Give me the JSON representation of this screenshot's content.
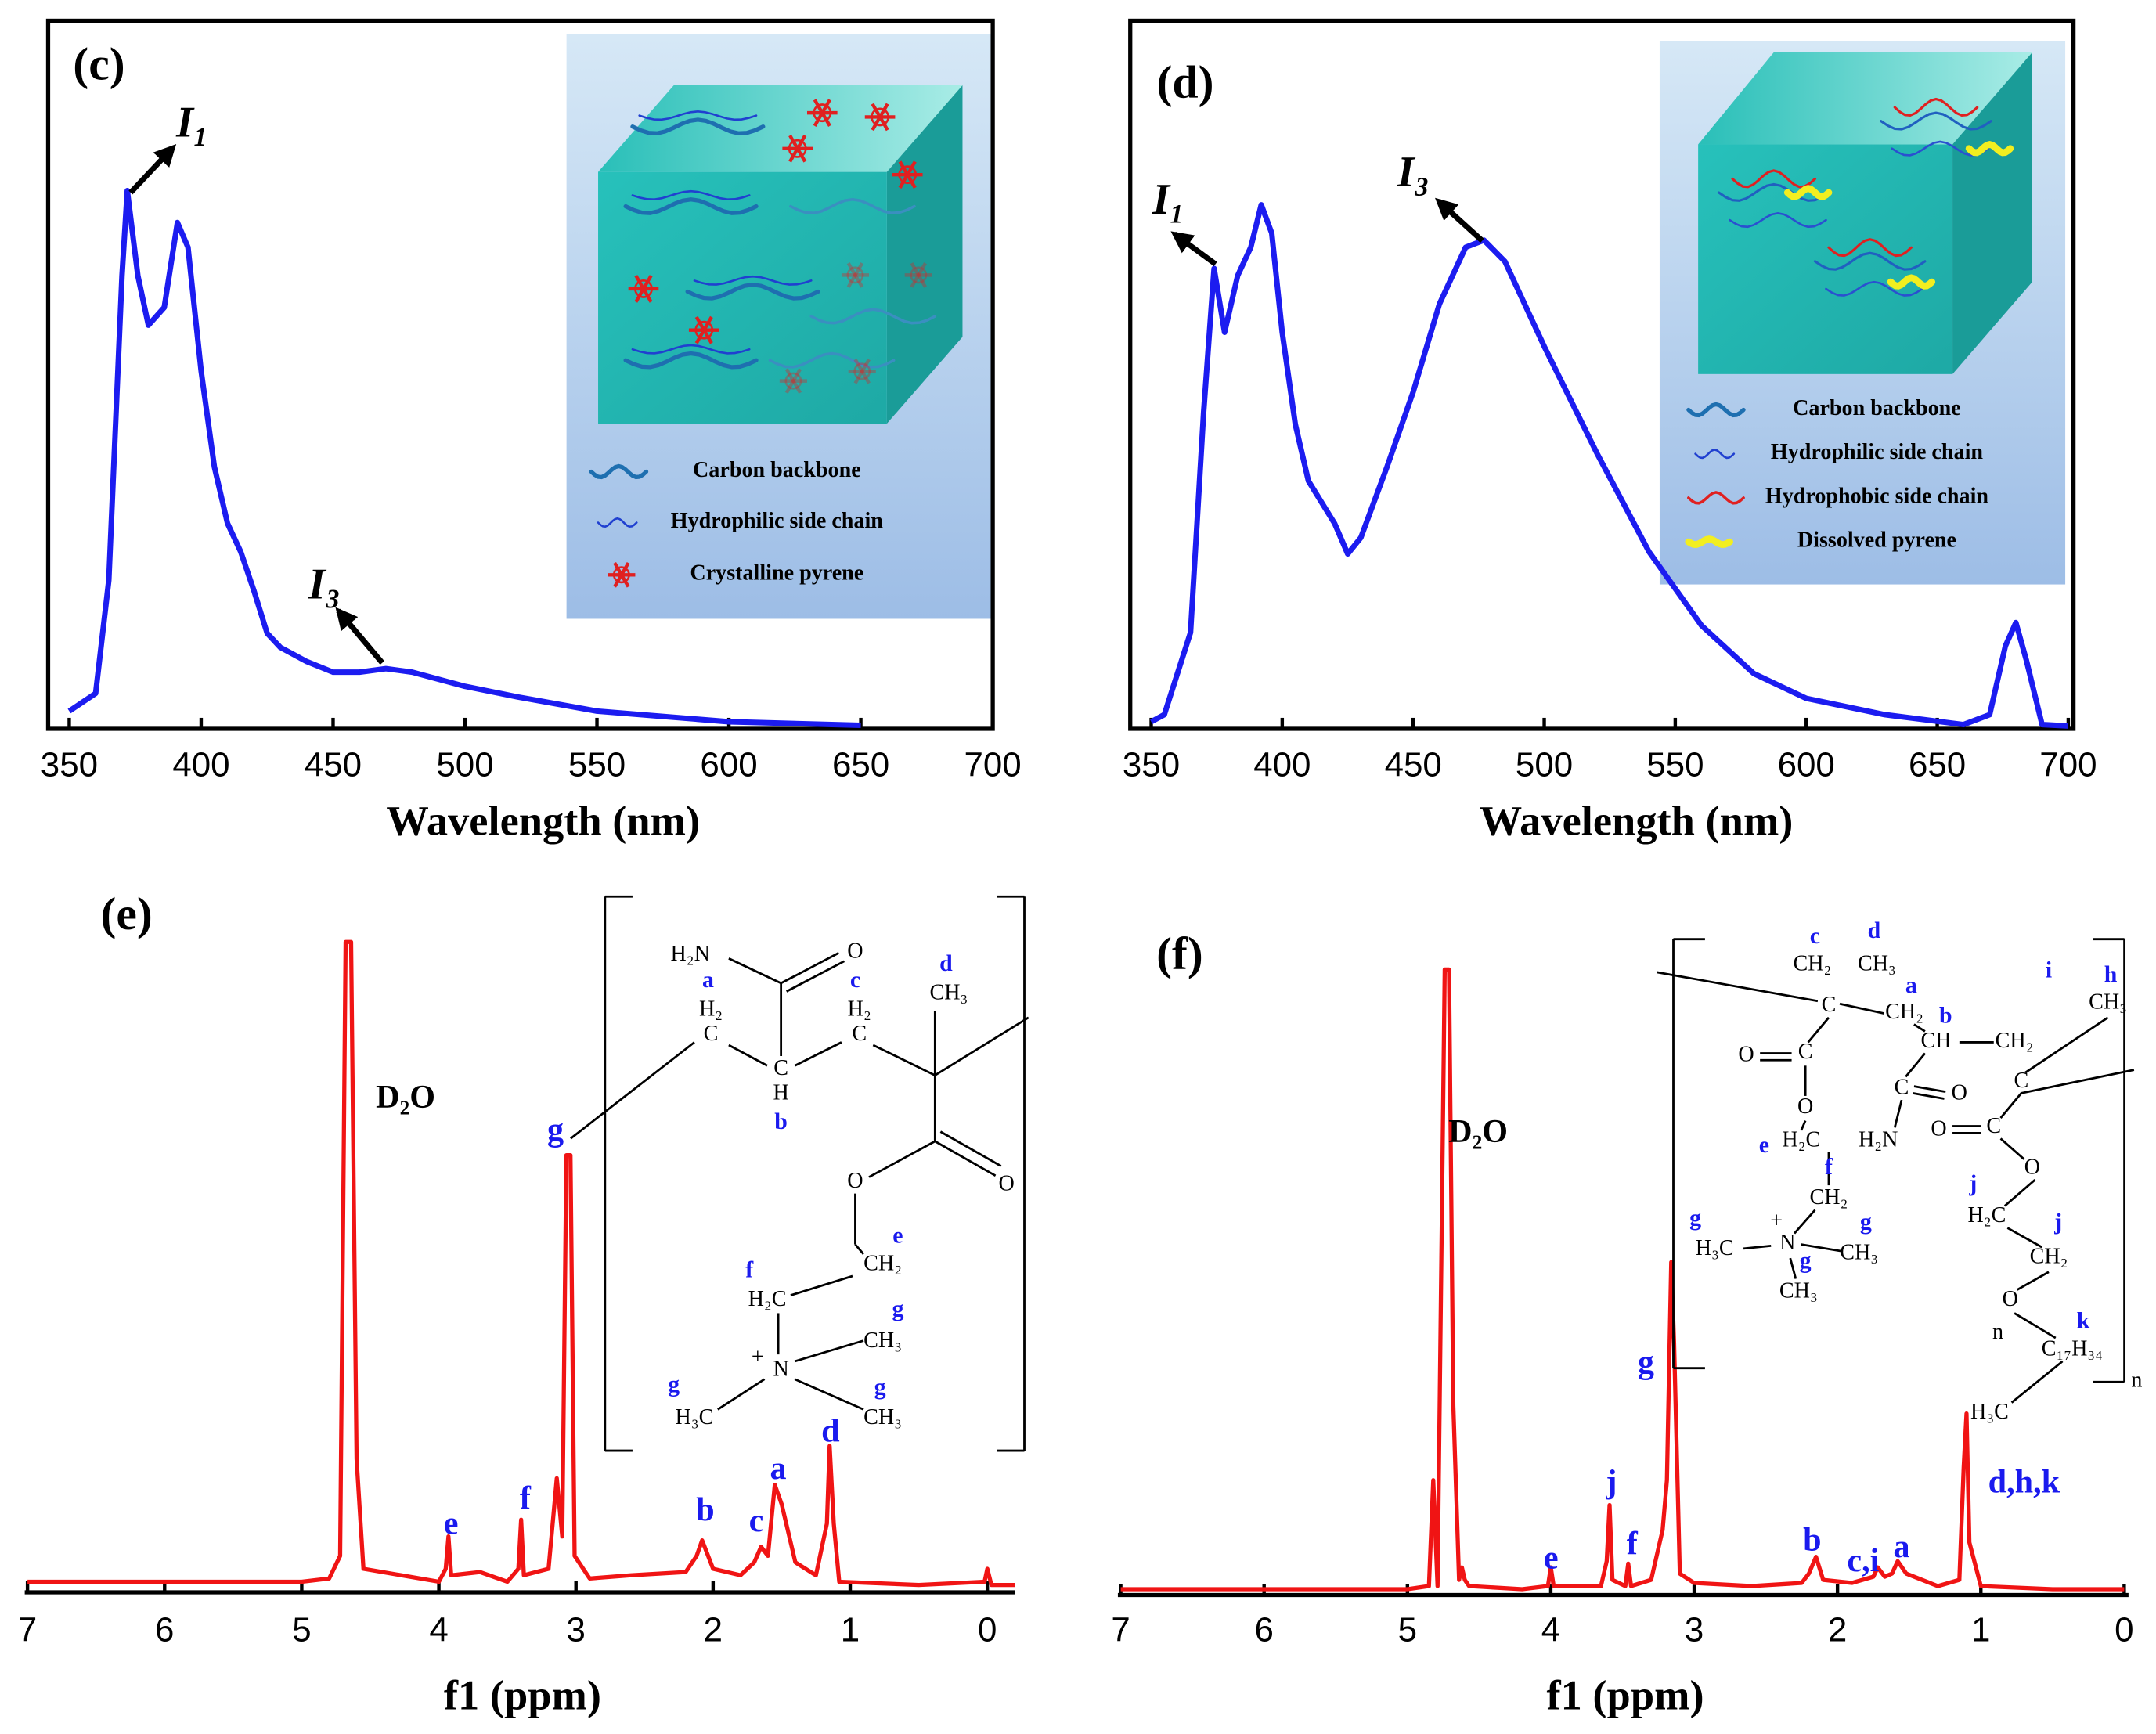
{
  "chart_data": [
    {
      "type": "line",
      "panel_label": "(c)",
      "x_label": "Wavelength (nm)",
      "x": [
        350,
        360,
        365,
        370,
        372,
        376,
        380,
        386,
        391,
        395,
        400,
        405,
        410,
        415,
        420,
        425,
        430,
        440,
        450,
        460,
        470,
        480,
        500,
        520,
        550,
        600,
        650
      ],
      "series": [
        {
          "color": "#1c1cf0",
          "values": [
            2.5,
            5,
            21,
            64,
            76,
            64,
            57,
            59.5,
            71.5,
            68,
            50.5,
            37,
            29,
            25,
            19.5,
            13.5,
            11.5,
            9.5,
            8,
            8,
            8.5,
            8,
            6,
            4.5,
            2.5,
            1,
            0.5
          ]
        }
      ],
      "xlim": [
        342,
        700
      ],
      "ylim": [
        0,
        100
      ],
      "xticks": [
        350,
        400,
        450,
        500,
        550,
        600,
        650,
        700
      ],
      "annotations": [
        "I₁",
        "I₃"
      ],
      "inset_legend": [
        "Carbon backbone",
        "Hydrophilic side chain",
        "Crystalline pyrene"
      ]
    },
    {
      "type": "line",
      "panel_label": "(d)",
      "x_label": "Wavelength (nm)",
      "x": [
        350,
        355,
        365,
        370,
        374,
        378,
        383,
        388,
        392,
        396,
        400,
        405,
        410,
        415,
        420,
        425,
        430,
        440,
        450,
        460,
        470,
        477,
        485,
        500,
        520,
        540,
        560,
        580,
        600,
        630,
        660,
        670,
        676,
        680,
        684,
        690,
        700
      ],
      "series": [
        {
          "color": "#1c1cf0",
          "values": [
            1,
            2,
            13.6,
            44.7,
            65,
            56,
            64,
            68,
            74,
            70,
            56,
            43,
            35,
            32,
            29,
            24.7,
            27,
            37,
            47.6,
            60,
            68,
            69,
            66,
            54,
            39,
            25,
            14.6,
            7.8,
            4.3,
            2,
            0.6,
            2,
            11.7,
            15,
            9.7,
            0.6,
            0.4
          ]
        }
      ],
      "xlim": [
        342,
        702
      ],
      "ylim": [
        0,
        100
      ],
      "xticks": [
        350,
        400,
        450,
        500,
        550,
        600,
        650,
        700
      ],
      "annotations": [
        "I₁",
        "I₃"
      ],
      "inset_legend": [
        "Carbon backbone",
        "Hydrophilic side chain",
        "Hydrophobic side chain",
        "Dissolved pyrene"
      ]
    },
    {
      "type": "line",
      "panel_label": "(e)",
      "x_label": "f1 (ppm)",
      "x": [
        7,
        5,
        4.8,
        4.72,
        4.68,
        4.64,
        4.6,
        4.55,
        4,
        3.95,
        3.93,
        3.91,
        3.7,
        3.5,
        3.42,
        3.4,
        3.38,
        3.2,
        3.14,
        3.1,
        3.07,
        3.04,
        3.01,
        2.9,
        2.6,
        2.2,
        2.12,
        2.08,
        2,
        1.8,
        1.7,
        1.65,
        1.6,
        1.55,
        1.5,
        1.4,
        1.25,
        1.17,
        1.15,
        1.12,
        1.08,
        0.5,
        0.02,
        0,
        -0.03,
        -0.2
      ],
      "series": [
        {
          "color": "#f01414",
          "values": [
            1,
            1,
            1.5,
            5,
            100,
            100,
            20,
            3,
            1,
            3,
            8,
            2,
            2.5,
            1,
            3,
            10.6,
            2,
            3,
            17,
            8,
            67,
            67,
            5,
            1.5,
            2,
            2.5,
            5,
            7.4,
            3,
            2,
            4,
            6.4,
            5,
            16,
            13,
            4,
            2,
            10,
            22,
            10,
            1,
            0.5,
            1,
            3,
            0.5,
            0.5
          ]
        }
      ],
      "xlim": [
        7.02,
        -0.2
      ],
      "ylim": [
        0,
        100
      ],
      "xticks": [
        7,
        6,
        5,
        4,
        3,
        2,
        1,
        0
      ],
      "annotations": [
        "D₂O",
        "g",
        "e",
        "f",
        "b",
        "c",
        "a",
        "d"
      ],
      "structure_labels": [
        "H₂N",
        "O",
        "a",
        "H₂",
        "C",
        "C",
        "H",
        "b",
        "c",
        "H₂",
        "C",
        "d",
        "CH₃",
        "O",
        "O",
        "e",
        "CH₂",
        "f",
        "H₂C",
        "g",
        "CH₃",
        "+",
        "N",
        "g",
        "H₃C",
        "g",
        "CH₃"
      ]
    },
    {
      "type": "line",
      "panel_label": "(f)",
      "x_label": "f1 (ppm)",
      "x": [
        7,
        5,
        4.85,
        4.82,
        4.79,
        4.74,
        4.71,
        4.68,
        4.64,
        4.62,
        4.6,
        4.57,
        4.2,
        4.02,
        4,
        3.98,
        3.65,
        3.61,
        3.59,
        3.57,
        3.48,
        3.46,
        3.44,
        3.3,
        3.22,
        3.19,
        3.16,
        3.14,
        3.1,
        3.0,
        2.6,
        2.25,
        2.2,
        2.15,
        2.1,
        1.9,
        1.75,
        1.72,
        1.67,
        1.62,
        1.58,
        1.52,
        1.3,
        1.15,
        1.12,
        1.1,
        1.08,
        1.0,
        0.5,
        0
      ],
      "series": [
        {
          "color": "#f01414",
          "values": [
            0.5,
            0.5,
            1,
            18,
            1,
            100,
            100,
            30,
            2,
            4,
            2,
            1,
            0.5,
            1,
            4,
            1,
            1,
            5,
            14,
            2,
            1,
            4.6,
            1,
            2,
            10,
            18,
            53,
            40,
            3,
            1.5,
            1,
            1.5,
            3,
            5.7,
            2,
            1.5,
            2.5,
            4,
            2.5,
            3,
            5,
            3,
            1,
            2,
            20,
            28.7,
            8,
            1,
            0.5,
            0.5
          ]
        }
      ],
      "xlim": [
        7.02,
        -0.03
      ],
      "ylim": [
        0,
        100
      ],
      "xticks": [
        7,
        6,
        5,
        4,
        3,
        2,
        1,
        0
      ],
      "annotations": [
        "D₂O",
        "e",
        "j",
        "f",
        "g",
        "b",
        "c,i",
        "a",
        "d,h,k"
      ],
      "structure_labels": [
        "c",
        "d",
        "CH₂",
        "CH₃",
        "a",
        "C",
        "CH₂",
        "b",
        "i",
        "h",
        "CH",
        "CH₂",
        "CH₃",
        "O",
        "C",
        "O",
        "C",
        "O",
        "C",
        "e",
        "H₂C",
        "H₂N",
        "O",
        "C",
        "O",
        "f",
        "CH₂",
        "j",
        "g",
        "+",
        "H₃C",
        "N",
        "g",
        "CH₃",
        "g",
        "CH₃",
        "H₂C",
        "j",
        "CH₂",
        "O",
        "k",
        "n",
        "C₁₇H₃₄",
        "H₃C",
        "n"
      ]
    }
  ]
}
